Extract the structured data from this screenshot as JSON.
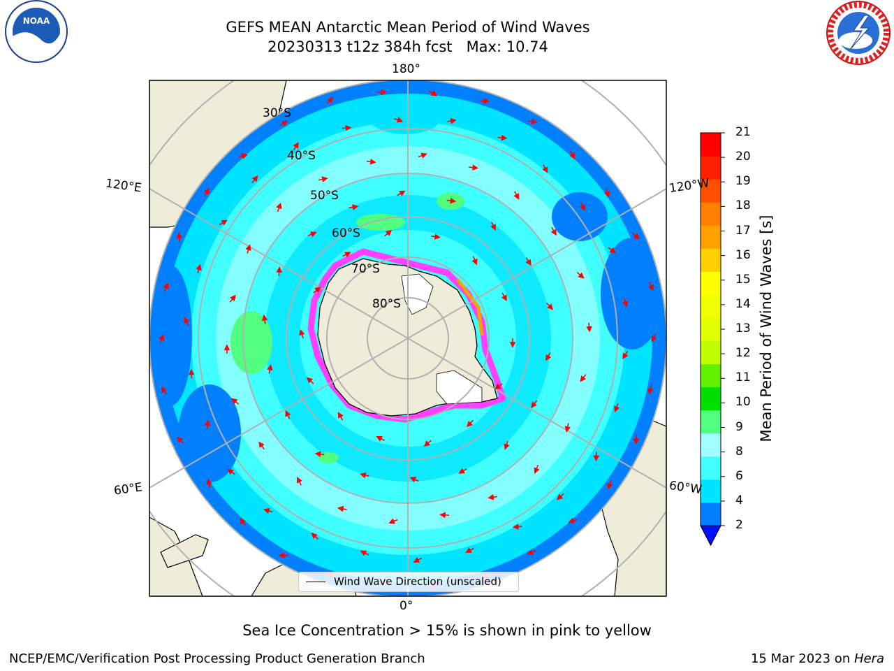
{
  "title": {
    "line1": "GEFS MEAN Antarctic Mean Period of Wind Waves",
    "line2": "20230313 t12z 384h fcst   Max: 10.74"
  },
  "logos": {
    "left": "NOAA",
    "right": "NATIONAL WEATHER SERVICE"
  },
  "map": {
    "longitude_labels": {
      "top": "180°",
      "bottom": "0°",
      "upper_left": "120°E",
      "upper_right": "120°W",
      "lower_left": "60°E",
      "lower_right": "60°W"
    },
    "latitude_labels": [
      "30°S",
      "40°S",
      "50°S",
      "60°S",
      "70°S",
      "80°S"
    ],
    "legend": "Wind Wave Direction (unscaled)"
  },
  "colorbar": {
    "label": "Mean Period of Wind Waves [s]",
    "ticks": [
      "2",
      "4",
      "6",
      "8",
      "9",
      "10",
      "11",
      "12",
      "13",
      "14",
      "15",
      "16",
      "17",
      "18",
      "19",
      "20",
      "21"
    ],
    "colors": [
      "#0080ff",
      "#00e5ff",
      "#40ffff",
      "#a0ffff",
      "#50ff80",
      "#00e000",
      "#60f000",
      "#c0ff00",
      "#e0ff00",
      "#f0ff00",
      "#ffff00",
      "#ffd000",
      "#ffa000",
      "#ff8000",
      "#ff5000",
      "#ff2000",
      "#ff0000"
    ],
    "extend_color": "#0010ff"
  },
  "caption": "Sea Ice Concentration > 15% is shown in pink to yellow",
  "footer": {
    "left": "NCEP/EMC/Verification Post Processing Product Generation Branch",
    "right_prefix": "15 Mar 2023 on ",
    "right_host": "Hera"
  },
  "colors": {
    "land": "#efecd9",
    "ocean_light": "#00e5ff",
    "ocean_mid": "#40ffff",
    "ocean_deep": "#0080ff",
    "ice": "#ff40ff",
    "arrow": "#ff0000"
  }
}
